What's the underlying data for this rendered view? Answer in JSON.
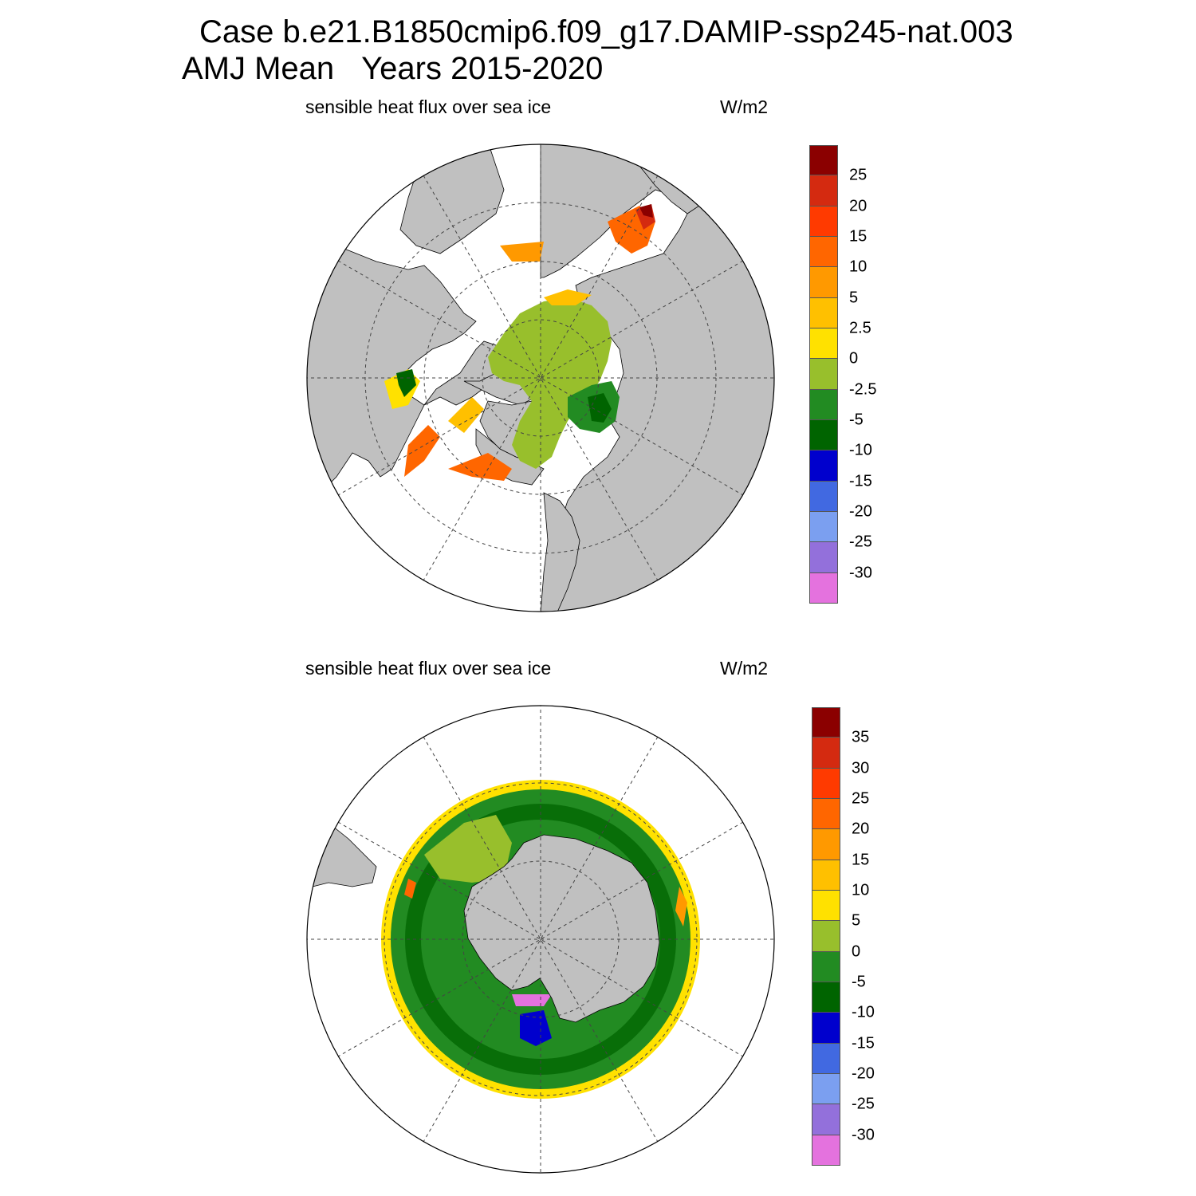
{
  "title": {
    "line1": "Case b.e21.B1850cmip6.f09_g17.DAMIP-ssp245-nat.003",
    "season": "AMJ Mean",
    "years": "Years 2015-2020"
  },
  "panels": [
    {
      "hemisphere": "north",
      "label": "sensible heat flux over sea ice",
      "units": "W/m2",
      "colorbar": {
        "colors": [
          "#8b0000",
          "#d42a10",
          "#ff3a00",
          "#ff6600",
          "#ff9900",
          "#ffc000",
          "#ffe100",
          "#98bf2c",
          "#228b22",
          "#006400",
          "#0000cd",
          "#4169e1",
          "#7b9ff0",
          "#9370db",
          "#e472de"
        ],
        "ticks": [
          "25",
          "20",
          "15",
          "10",
          "5",
          "2.5",
          "0",
          "-2.5",
          "-5",
          "-10",
          "-15",
          "-20",
          "-25",
          "-30"
        ]
      }
    },
    {
      "hemisphere": "south",
      "label": "sensible heat flux over sea ice",
      "units": "W/m2",
      "colorbar": {
        "colors": [
          "#8b0000",
          "#d42a10",
          "#ff3a00",
          "#ff6600",
          "#ff9900",
          "#ffc000",
          "#ffe100",
          "#98bf2c",
          "#228b22",
          "#006400",
          "#0000cd",
          "#4169e1",
          "#7b9ff0",
          "#9370db",
          "#e472de"
        ],
        "ticks": [
          "35",
          "30",
          "25",
          "20",
          "15",
          "10",
          "5",
          "0",
          "-5",
          "-10",
          "-15",
          "-20",
          "-25",
          "-30"
        ]
      }
    }
  ],
  "map_style": {
    "land": "#c0c0c0",
    "ocean": "#ffffff",
    "coast": "#000000",
    "grid": "#444444"
  }
}
